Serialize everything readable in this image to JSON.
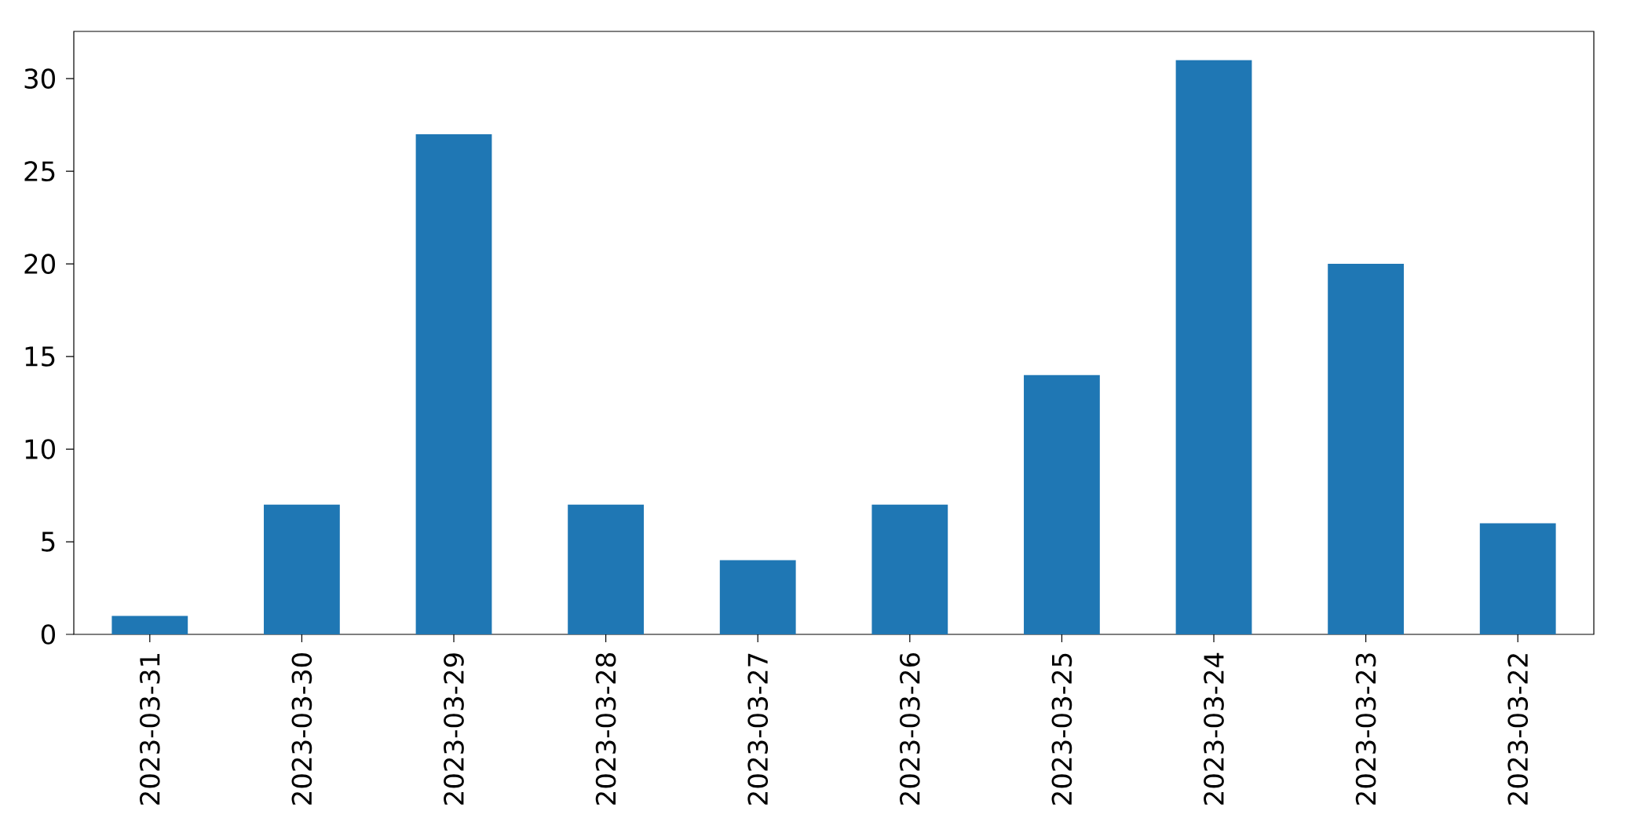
{
  "chart_data": {
    "type": "bar",
    "categories": [
      "2023-03-31",
      "2023-03-30",
      "2023-03-29",
      "2023-03-28",
      "2023-03-27",
      "2023-03-26",
      "2023-03-25",
      "2023-03-24",
      "2023-03-23",
      "2023-03-22"
    ],
    "values": [
      1,
      7,
      27,
      7,
      4,
      7,
      14,
      31,
      20,
      6
    ],
    "color": "#1f77b4",
    "ylim": [
      0,
      32.55
    ],
    "yticks": [
      0,
      5,
      10,
      15,
      20,
      25,
      30
    ]
  }
}
